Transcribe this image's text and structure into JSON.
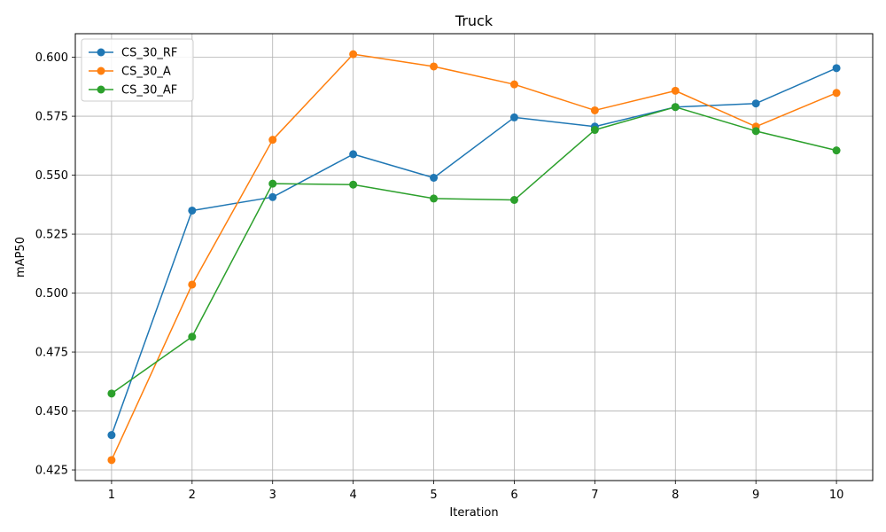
{
  "chart_data": {
    "type": "line",
    "title": "Truck",
    "xlabel": "Iteration",
    "ylabel": "mAP50",
    "x": [
      1,
      2,
      3,
      4,
      5,
      6,
      7,
      8,
      9,
      10
    ],
    "xlim": [
      0.55,
      10.45
    ],
    "ylim": [
      0.4205,
      0.61
    ],
    "xticks": [
      1,
      2,
      3,
      4,
      5,
      6,
      7,
      8,
      9,
      10
    ],
    "yticks": [
      0.425,
      0.45,
      0.475,
      0.5,
      0.525,
      0.55,
      0.575,
      0.6
    ],
    "ytick_labels": [
      "0.425",
      "0.450",
      "0.475",
      "0.500",
      "0.525",
      "0.550",
      "0.575",
      "0.600"
    ],
    "grid": true,
    "legend_position": "top-left",
    "series": [
      {
        "name": "CS_30_RF",
        "color": "#1f77b4",
        "marker": "circle",
        "values": [
          0.4398,
          0.535,
          0.5407,
          0.5589,
          0.5489,
          0.5745,
          0.5706,
          0.5789,
          0.5804,
          0.5954
        ]
      },
      {
        "name": "CS_30_A",
        "color": "#ff7f0e",
        "marker": "circle",
        "values": [
          0.4292,
          0.5036,
          0.565,
          0.6013,
          0.5961,
          0.5885,
          0.5775,
          0.5858,
          0.5706,
          0.5849
        ]
      },
      {
        "name": "CS_30_AF",
        "color": "#2ca02c",
        "marker": "circle",
        "values": [
          0.4574,
          0.4815,
          0.5464,
          0.546,
          0.5401,
          0.5395,
          0.5692,
          0.5789,
          0.5687,
          0.5605
        ]
      }
    ]
  }
}
